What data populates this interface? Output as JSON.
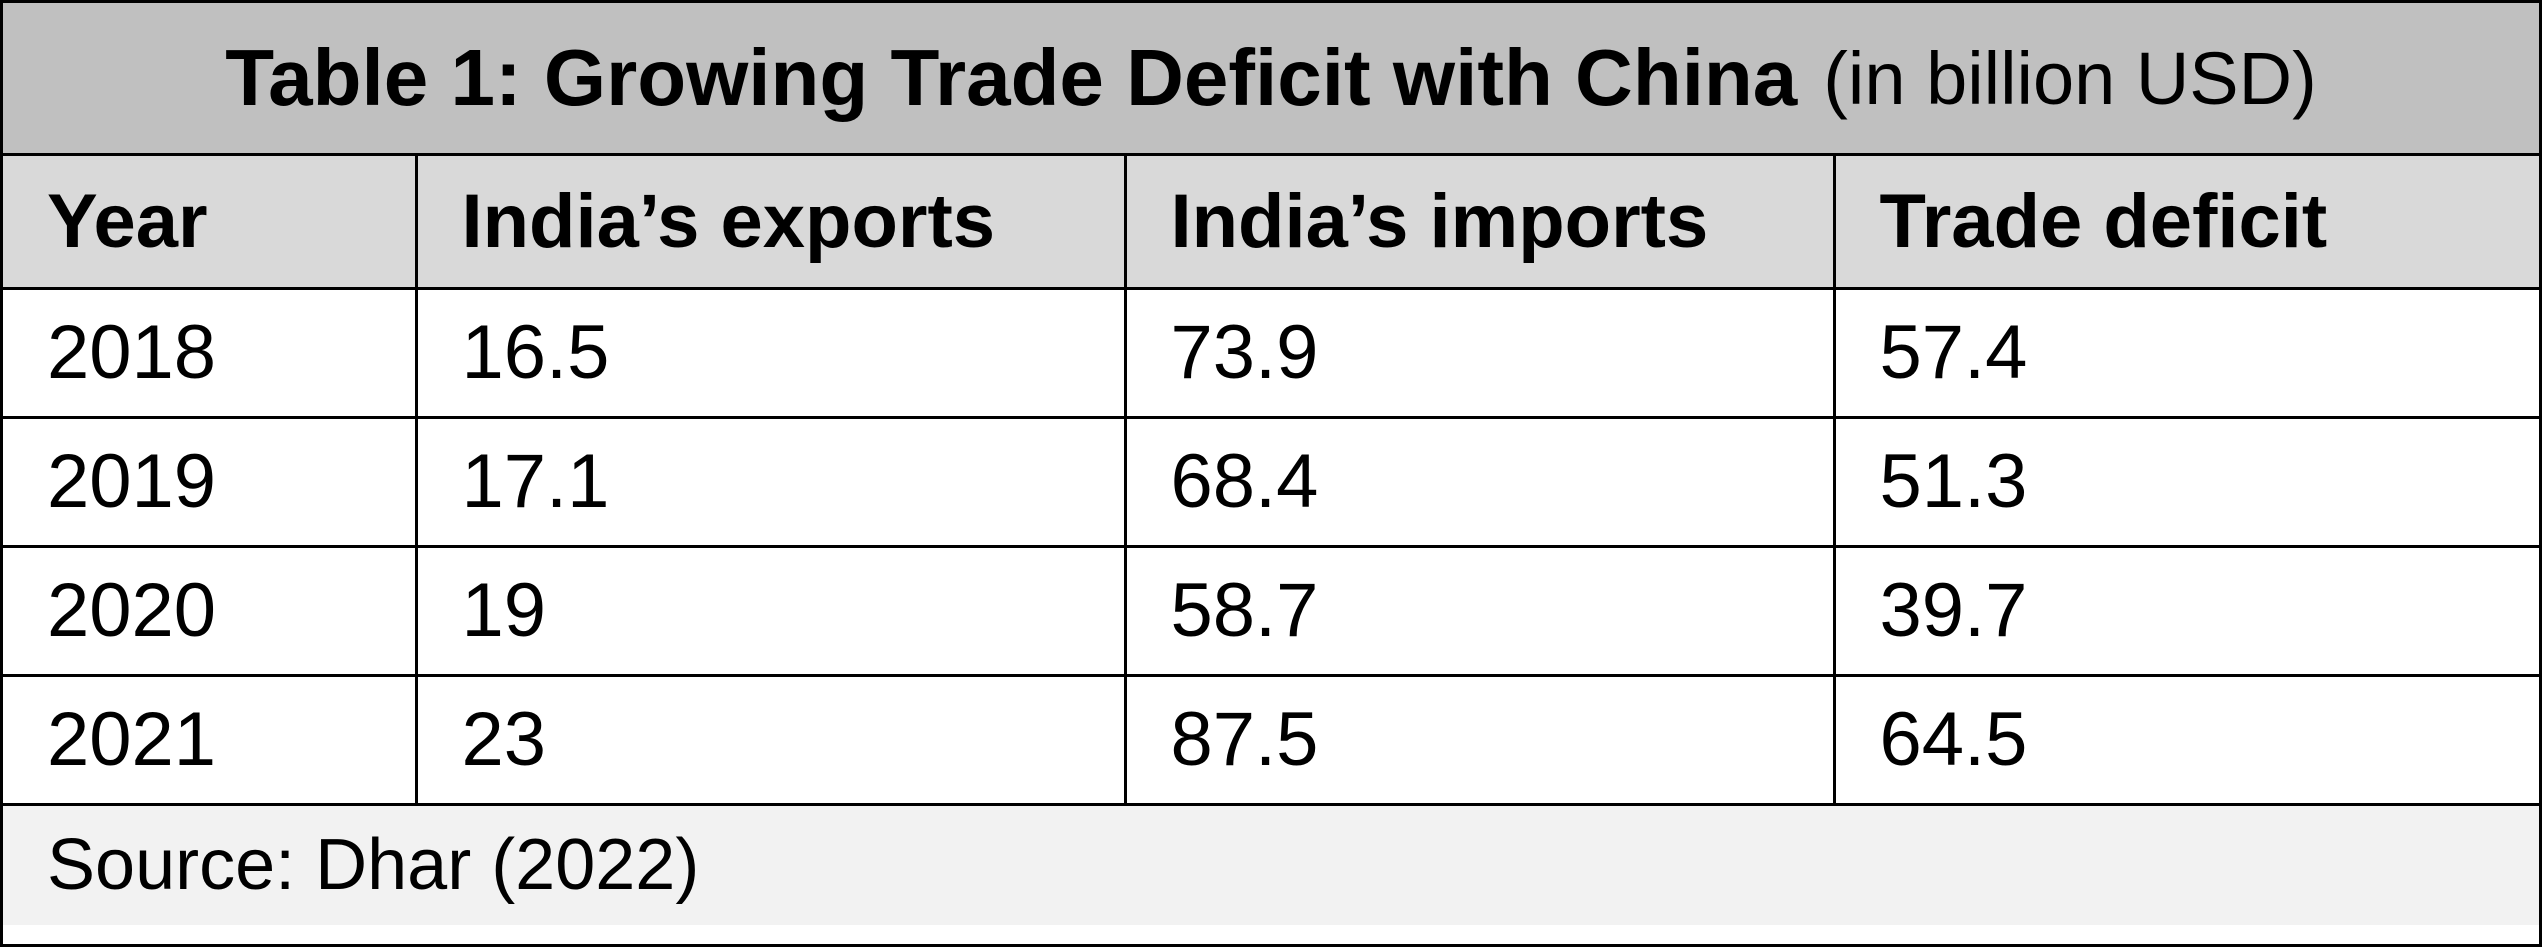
{
  "chart_data": {
    "type": "table",
    "title": "Table 1: Growing Trade Deficit with China",
    "subtitle": "(in billion USD)",
    "columns": [
      "Year",
      "India’s exports",
      "India’s imports",
      "Trade deficit"
    ],
    "rows": [
      [
        "2018",
        "16.5",
        "73.9",
        "57.4"
      ],
      [
        "2019",
        "17.1",
        "68.4",
        "51.3"
      ],
      [
        "2020",
        "19",
        "58.7",
        "39.7"
      ],
      [
        "2021",
        "23",
        "87.5",
        "64.5"
      ]
    ],
    "source": "Source: Dhar (2022)"
  }
}
